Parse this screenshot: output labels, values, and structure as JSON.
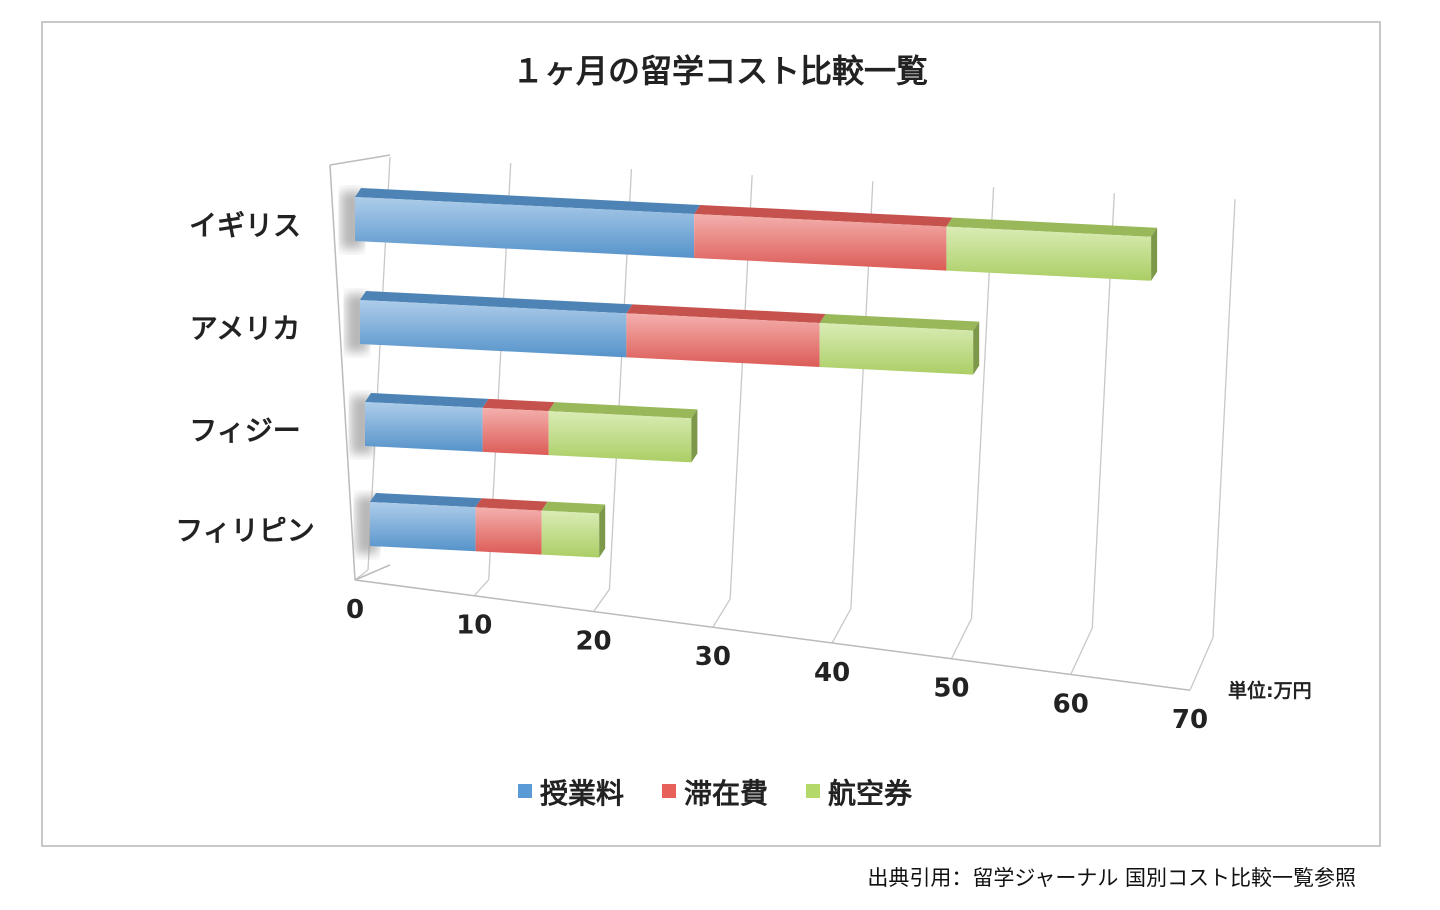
{
  "chart_data": {
    "type": "bar",
    "orientation": "horizontal",
    "stacked": true,
    "style": "3d",
    "title": "１ヶ月の留学コスト比較一覧",
    "categories": [
      "イギリス",
      "アメリカ",
      "フィジー",
      "フィリピン"
    ],
    "series": [
      {
        "name": "授業料",
        "color": "#5b9bd5",
        "values": [
          28.5,
          22.2,
          9.8,
          8.8
        ]
      },
      {
        "name": "滞在費",
        "color": "#e8605a",
        "values": [
          21.2,
          16.1,
          5.5,
          5.5
        ]
      },
      {
        "name": "航空券",
        "color": "#b4d96a",
        "values": [
          17.2,
          12.8,
          11.9,
          4.8
        ]
      }
    ],
    "xlim": [
      0,
      70
    ],
    "xticks": [
      "0",
      "10",
      "20",
      "30",
      "40",
      "50",
      "60",
      "70"
    ],
    "unit_label": "単位:万円",
    "grid": true,
    "legend": "bottom"
  },
  "source_note": "出典引用：留学ジャーナル  国別コスト比較一覧参照"
}
